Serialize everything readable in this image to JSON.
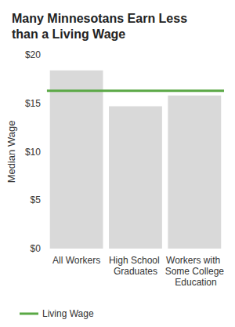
{
  "chart_data": {
    "type": "bar",
    "title": "Many Minnesotans Earn Less than a Living Wage",
    "y_label": "Median Wage",
    "categories": [
      "All Workers",
      "High School Graduates",
      "Workers with Some College Education"
    ],
    "values": [
      18.4,
      14.7,
      15.8
    ],
    "color": "#d9d9d9",
    "series": [
      {
        "name": "Living Wage",
        "type": "line",
        "color": "#5aa845",
        "values": [
          16.3,
          16.3,
          16.3
        ]
      }
    ],
    "ylim": [
      0,
      20
    ],
    "yticks": [
      {
        "value": 0,
        "label": "$0"
      },
      {
        "value": 5,
        "label": "$5"
      },
      {
        "value": 10,
        "label": "$10"
      },
      {
        "value": 15,
        "label": "$15"
      },
      {
        "value": 20,
        "label": "$20"
      }
    ],
    "grid": false,
    "legend": "bottom"
  }
}
